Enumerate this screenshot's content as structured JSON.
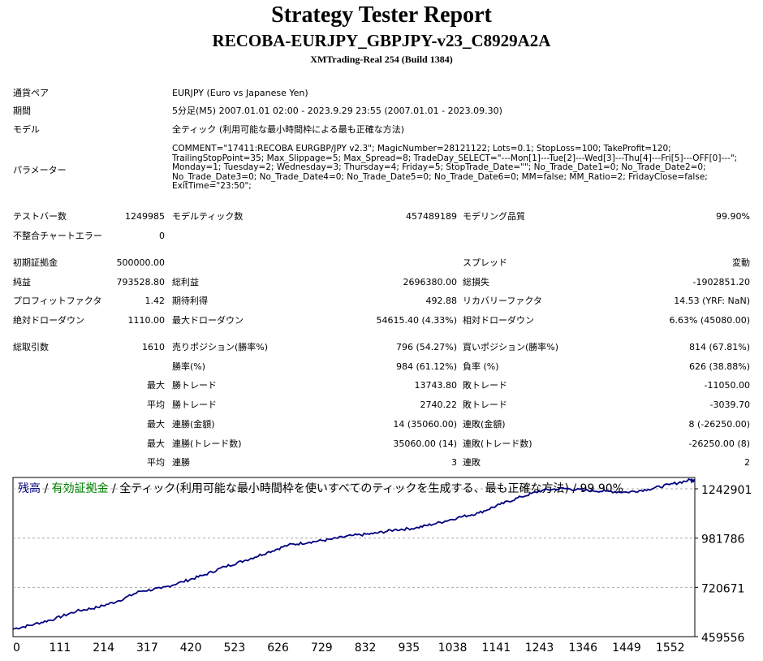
{
  "report": {
    "title": "Strategy Tester Report",
    "ea_name": "RECOBA-EURJPY_GBPJPY-v23_C8929A2A",
    "server": "XMTrading-Real 254 (Build 1384)"
  },
  "info": {
    "pair_label": "通貨ペア",
    "pair_value": "EURJPY (Euro vs Japanese Yen)",
    "period_label": "期間",
    "period_value": "5分足(M5) 2007.01.01 02:00 - 2023.9.29 23:55 (2007.01.01 - 2023.09.30)",
    "model_label": "モデル",
    "model_value": "全ティック (利用可能な最小時間枠による最も正確な方法)",
    "params_label": "パラメーター",
    "params_lines": [
      "COMMENT=\"17411:RECOBA EURGBP/JPY v2.3\"; MagicNumber=28121122; Lots=0.1; StopLoss=100; TakeProfit=120;",
      "TrailingStopPoint=35; Max_Slippage=5; Max_Spread=8; TradeDay_SELECT=\"---Mon[1]---Tue[2]---Wed[3]---Thu[4]---Fri[5]---OFF[0]---\";",
      "Monday=1; Tuesday=2; Wednesday=3; Thursday=4; Friday=5; StopTrade_Date=\"\"; No_Trade_Date1=0; No_Trade_Date2=0;",
      "No_Trade_Date3=0; No_Trade_Date4=0; No_Trade_Date5=0; No_Trade_Date6=0; MM=false; MM_Ratio=2; FridayClose=false;",
      "ExitTime=\"23:50\";"
    ]
  },
  "stats": {
    "bars_label": "テストバー数",
    "bars_value": "1249985",
    "ticks_label": "モデルティック数",
    "ticks_value": "457489189",
    "quality_label": "モデリング品質",
    "quality_value": "99.90%",
    "mismatch_label": "不整合チャートエラー",
    "mismatch_value": "0",
    "deposit_label": "初期証拠金",
    "deposit_value": "500000.00",
    "spread_label": "スプレッド",
    "spread_value": "変動",
    "net_label": "純益",
    "net_value": "793528.80",
    "gross_profit_label": "総利益",
    "gross_profit_value": "2696380.00",
    "gross_loss_label": "総損失",
    "gross_loss_value": "-1902851.20",
    "pf_label": "プロフィットファクタ",
    "pf_value": "1.42",
    "expected_label": "期待利得",
    "expected_value": "492.88",
    "recovery_label": "リカバリーファクタ",
    "recovery_value": "14.53 (YRF: NaN)",
    "abs_dd_label": "絶対ドローダウン",
    "abs_dd_value": "1110.00",
    "max_dd_label": "最大ドローダウン",
    "max_dd_value": "54615.40 (4.33%)",
    "rel_dd_label": "相対ドローダウン",
    "rel_dd_value": "6.63% (45080.00)",
    "total_trades_label": "総取引数",
    "total_trades_value": "1610",
    "short_label": "売りポジション(勝率%)",
    "short_value": "796 (54.27%)",
    "long_label": "買いポジション(勝率%)",
    "long_value": "814 (67.81%)",
    "win_rate_label": "勝率(%)",
    "win_rate_value": "984 (61.12%)",
    "loss_rate_label": "負率 (%)",
    "loss_rate_value": "626 (38.88%)",
    "max_label": "最大",
    "avg_label": "平均",
    "win_trade_label": "勝トレード",
    "loss_trade_label": "敗トレード",
    "max_win_value": "13743.80",
    "max_loss_value": "-11050.00",
    "avg_win_value": "2740.22",
    "avg_loss_value": "-3039.70",
    "consec_win_amount_label": "連勝(金額)",
    "consec_win_amount_value": "14 (35060.00)",
    "consec_loss_amount_label": "連敗(金額)",
    "consec_loss_amount_value": "8 (-26250.00)",
    "consec_win_count_label": "連勝(トレード数)",
    "consec_win_count_value": "35060.00 (14)",
    "consec_loss_count_label": "連敗(トレード数)",
    "consec_loss_count_value": "-26250.00 (8)",
    "avg_consec_win_label": "連勝",
    "avg_consec_win_value": "3",
    "avg_consec_loss_label": "連敗",
    "avg_consec_loss_value": "2"
  },
  "chart_data": {
    "type": "line",
    "legend_balance": "残高",
    "legend_sep1": " / ",
    "legend_equity": "有効証拠金",
    "legend_rest": " / 全ティック(利用可能な最小時間枠を使いすべてのティックを生成する、最も正確な方法) / 99.90%",
    "x_ticks": [
      "0",
      "111",
      "214",
      "317",
      "420",
      "523",
      "626",
      "729",
      "832",
      "935",
      "1038",
      "1141",
      "1243",
      "1346",
      "1449",
      "1552"
    ],
    "y_ticks": [
      "1242901",
      "981786",
      "720671",
      "459556"
    ],
    "y_tick_values": [
      1242901,
      981786,
      720671,
      459556
    ],
    "ylim": [
      459556,
      1303000
    ],
    "xlim": [
      0,
      1610
    ],
    "grid": true,
    "series": [
      {
        "color": "#000080",
        "x": [
          0,
          50,
          100,
          150,
          200,
          250,
          300,
          350,
          400,
          450,
          500,
          550,
          600,
          650,
          700,
          750,
          800,
          850,
          900,
          950,
          1000,
          1050,
          1100,
          1150,
          1200,
          1250,
          1300,
          1350,
          1400,
          1450,
          1500,
          1550,
          1600,
          1610
        ],
        "values": [
          500000,
          525000,
          555000,
          595000,
          615000,
          650000,
          700000,
          715000,
          750000,
          785000,
          830000,
          865000,
          905000,
          945000,
          960000,
          975000,
          995000,
          1005000,
          1025000,
          1035000,
          1060000,
          1090000,
          1115000,
          1160000,
          1200000,
          1235000,
          1245000,
          1235000,
          1230000,
          1225000,
          1240000,
          1265000,
          1290000,
          1290000
        ]
      }
    ]
  }
}
